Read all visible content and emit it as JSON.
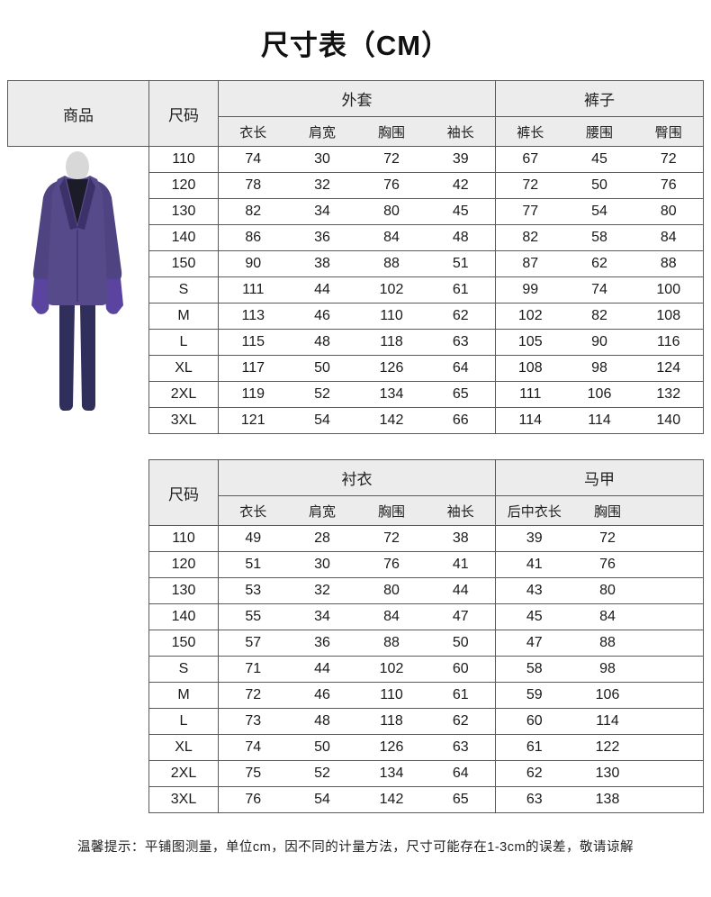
{
  "page": {
    "title": "尺寸表（CM）",
    "note": "温馨提示：平铺图测量，单位cm，因不同的计量方法，尺寸可能存在1-3cm的误差，敬请谅解"
  },
  "colors": {
    "header_bg": "#ececec",
    "border": "#5a5a5a",
    "coat_purple": "#564a8a",
    "sleeve_purple": "#4f4382",
    "glove_purple": "#5a44a0",
    "pants_navy": "#302e5a",
    "lapel_dark": "#1c1c28"
  },
  "product": {
    "header": "商品",
    "image_name": "purple-joker-coat-costume"
  },
  "table1": {
    "size_header": "尺码",
    "groups": [
      {
        "label": "外套",
        "cols": [
          "衣长",
          "肩宽",
          "胸围",
          "袖长"
        ]
      },
      {
        "label": "裤子",
        "cols": [
          "裤长",
          "腰围",
          "臀围"
        ]
      }
    ],
    "rows": [
      {
        "size": "110",
        "values": [
          74,
          30,
          72,
          39,
          67,
          45,
          72
        ]
      },
      {
        "size": "120",
        "values": [
          78,
          32,
          76,
          42,
          72,
          50,
          76
        ]
      },
      {
        "size": "130",
        "values": [
          82,
          34,
          80,
          45,
          77,
          54,
          80
        ]
      },
      {
        "size": "140",
        "values": [
          86,
          36,
          84,
          48,
          82,
          58,
          84
        ]
      },
      {
        "size": "150",
        "values": [
          90,
          38,
          88,
          51,
          87,
          62,
          88
        ]
      },
      {
        "size": "S",
        "values": [
          111,
          44,
          102,
          61,
          99,
          74,
          100
        ]
      },
      {
        "size": "M",
        "values": [
          113,
          46,
          110,
          62,
          102,
          82,
          108
        ]
      },
      {
        "size": "L",
        "values": [
          115,
          48,
          118,
          63,
          105,
          90,
          116
        ]
      },
      {
        "size": "XL",
        "values": [
          117,
          50,
          126,
          64,
          108,
          98,
          124
        ]
      },
      {
        "size": "2XL",
        "values": [
          119,
          52,
          134,
          65,
          111,
          106,
          132
        ]
      },
      {
        "size": "3XL",
        "values": [
          121,
          54,
          142,
          66,
          114,
          114,
          140
        ]
      }
    ]
  },
  "table2": {
    "size_header": "尺码",
    "groups": [
      {
        "label": "衬衣",
        "cols": [
          "衣长",
          "肩宽",
          "胸围",
          "袖长"
        ]
      },
      {
        "label": "马甲",
        "cols": [
          "后中衣长",
          "胸围"
        ]
      }
    ],
    "rows": [
      {
        "size": "110",
        "values": [
          49,
          28,
          72,
          38,
          39,
          72
        ]
      },
      {
        "size": "120",
        "values": [
          51,
          30,
          76,
          41,
          41,
          76
        ]
      },
      {
        "size": "130",
        "values": [
          53,
          32,
          80,
          44,
          43,
          80
        ]
      },
      {
        "size": "140",
        "values": [
          55,
          34,
          84,
          47,
          45,
          84
        ]
      },
      {
        "size": "150",
        "values": [
          57,
          36,
          88,
          50,
          47,
          88
        ]
      },
      {
        "size": "S",
        "values": [
          71,
          44,
          102,
          60,
          58,
          98
        ]
      },
      {
        "size": "M",
        "values": [
          72,
          46,
          110,
          61,
          59,
          106
        ]
      },
      {
        "size": "L",
        "values": [
          73,
          48,
          118,
          62,
          60,
          114
        ]
      },
      {
        "size": "XL",
        "values": [
          74,
          50,
          126,
          63,
          61,
          122
        ]
      },
      {
        "size": "2XL",
        "values": [
          75,
          52,
          134,
          64,
          62,
          130
        ]
      },
      {
        "size": "3XL",
        "values": [
          76,
          54,
          142,
          65,
          63,
          138
        ]
      }
    ]
  }
}
